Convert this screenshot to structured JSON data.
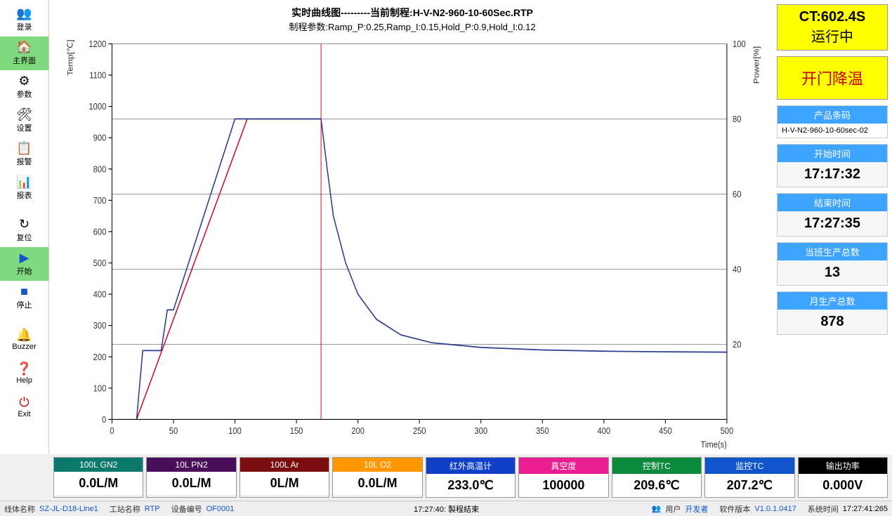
{
  "sidebar": [
    {
      "icon": "👥",
      "label": "登录",
      "cls": ""
    },
    {
      "icon": "🏠",
      "label": "主界面",
      "cls": "active"
    },
    {
      "icon": "⚙",
      "label": "参数",
      "cls": ""
    },
    {
      "icon": "🛠",
      "label": "设置",
      "cls": ""
    },
    {
      "icon": "📋",
      "label": "报警",
      "cls": ""
    },
    {
      "icon": "📊",
      "label": "报表",
      "cls": ""
    },
    {
      "sep": true
    },
    {
      "icon": "↻",
      "label": "复位",
      "cls": ""
    },
    {
      "icon": "▶",
      "label": "开始",
      "cls": "green",
      "iconColor": "#1155cc"
    },
    {
      "icon": "■",
      "label": "停止",
      "cls": "",
      "iconColor": "#1155cc"
    },
    {
      "sep": true
    },
    {
      "icon": "🔔",
      "label": "Buzzer",
      "cls": ""
    },
    {
      "icon": "❓",
      "label": "Help",
      "cls": ""
    },
    {
      "icon": "⏻",
      "label": "Exit",
      "cls": "",
      "iconColor": "#c00"
    }
  ],
  "chart": {
    "title": "实时曲线图---------当前制程:H-V-N2-960-10-60Sec.RTP",
    "subtitle": "制程参数:Ramp_P:0.25,Ramp_I:0.15,Hold_P:0.9,Hold_I:0.12",
    "yLeftLabel": "Temp[℃]",
    "yRightLabel": "Power[%]",
    "xLabel": "Time(s)",
    "xlim": [
      0,
      500
    ],
    "xticks": [
      0,
      50,
      100,
      150,
      200,
      250,
      300,
      350,
      400,
      450,
      500
    ],
    "ylim": [
      0,
      1200
    ],
    "yticks": [
      0,
      100,
      200,
      300,
      400,
      500,
      600,
      700,
      800,
      900,
      1000,
      1100,
      1200
    ],
    "y2lim": [
      0,
      100
    ],
    "y2ticks": [
      20,
      40,
      60,
      80,
      100
    ],
    "grid_color": "#888",
    "curve1_color": "#c8102e",
    "curve2_color": "#2a3b8f",
    "curve1": [
      [
        20,
        0
      ],
      [
        25,
        220
      ],
      [
        40,
        220
      ],
      [
        45,
        350
      ],
      [
        50,
        350
      ],
      [
        100,
        960
      ],
      [
        170,
        960
      ]
    ],
    "curve1b": [
      [
        20,
        0
      ],
      [
        110,
        960
      ],
      [
        170,
        960
      ]
    ],
    "curve2": [
      [
        170,
        960
      ],
      [
        175,
        800
      ],
      [
        180,
        650
      ],
      [
        190,
        500
      ],
      [
        200,
        400
      ],
      [
        215,
        320
      ],
      [
        235,
        270
      ],
      [
        260,
        245
      ],
      [
        300,
        230
      ],
      [
        350,
        222
      ],
      [
        400,
        218
      ],
      [
        450,
        216
      ],
      [
        500,
        215
      ]
    ],
    "vline_x": 170
  },
  "status": {
    "ct": "CT:602.4S",
    "state": "运行中",
    "action": "开门降温"
  },
  "right": {
    "barcode_hdr": "产品条码",
    "barcode": "H-V-N2-960-10-60sec-02",
    "start_hdr": "开始时间",
    "start": "17:17:32",
    "end_hdr": "结束时间",
    "end": "17:27:35",
    "shift_hdr": "当班生产总数",
    "shift": "13",
    "month_hdr": "月生产总数",
    "month": "878"
  },
  "tiles": [
    {
      "hdr": "100L GN2",
      "val": "0.0L/M",
      "bg": "#0d7a6e"
    },
    {
      "hdr": "10L PN2",
      "val": "0.0L/M",
      "bg": "#4a0f5a"
    },
    {
      "hdr": "100L Ar",
      "val": "0L/M",
      "bg": "#7a0d0d"
    },
    {
      "hdr": "10L O2",
      "val": "0.0L/M",
      "bg": "#ff9800"
    },
    {
      "hdr": "红外高温计",
      "val": "233.0℃",
      "bg": "#1040c8"
    },
    {
      "hdr": "真空度",
      "val": "100000",
      "bg": "#e91e90"
    },
    {
      "hdr": "控制TC",
      "val": "209.6℃",
      "bg": "#0a8a3a"
    },
    {
      "hdr": "监控TC",
      "val": "207.2℃",
      "bg": "#1155cc"
    },
    {
      "hdr": "输出功率",
      "val": "0.000V",
      "bg": "#000000"
    }
  ],
  "statusbar": {
    "f1l": "线体名称",
    "f1v": "SZ-JL-D18-Line1",
    "f2l": "工站名称",
    "f2v": "RTP",
    "f3l": "设备编号",
    "f3v": "OF0001",
    "center": "17:27:40: 製程結束",
    "userl": "用户",
    "userv": "开发者",
    "verl": "软件版本",
    "verv": "V1.0.1.0417",
    "timel": "系统时间",
    "timev": "17:27:41:265"
  }
}
